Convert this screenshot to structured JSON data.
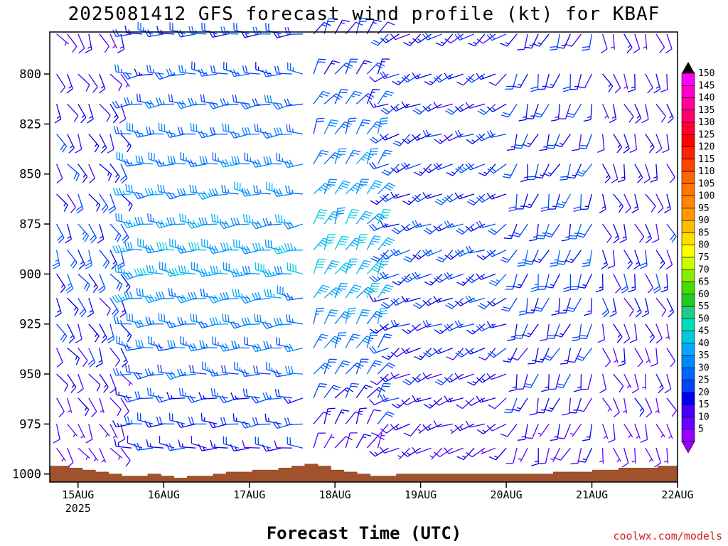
{
  "chart_data": {
    "type": "wind_barb_profile",
    "title": "2025081412 GFS forecast wind profile (kt) for KBAF",
    "xlabel": "Forecast Time (UTC)",
    "ylabel": "",
    "credit": "coolwx.com/models",
    "x_ticks": [
      {
        "label": "15AUG",
        "sub": "2025"
      },
      {
        "label": "16AUG",
        "sub": ""
      },
      {
        "label": "17AUG",
        "sub": ""
      },
      {
        "label": "18AUG",
        "sub": ""
      },
      {
        "label": "19AUG",
        "sub": ""
      },
      {
        "label": "20AUG",
        "sub": ""
      },
      {
        "label": "21AUG",
        "sub": ""
      },
      {
        "label": "22AUG",
        "sub": ""
      }
    ],
    "xlim_days_after_15AUG": [
      -0.33,
      7.0
    ],
    "y_ticks": [
      "800",
      "825",
      "850",
      "875",
      "900",
      "925",
      "950",
      "975",
      "1000"
    ],
    "ylim_hpa": [
      1004,
      779
    ],
    "levels_hpa": [
      780,
      800,
      815,
      830,
      845,
      860,
      875,
      888,
      900,
      912,
      925,
      937,
      950,
      962,
      975,
      987
    ],
    "time_step_hours": 3,
    "colorbar": {
      "labels": [
        "150",
        "145",
        "140",
        "135",
        "130",
        "125",
        "120",
        "115",
        "110",
        "105",
        "100",
        "95",
        "90",
        "85",
        "80",
        "75",
        "70",
        "65",
        "60",
        "55",
        "50",
        "45",
        "40",
        "35",
        "30",
        "25",
        "20",
        "15",
        "10",
        "5"
      ],
      "colors": [
        "#ff00ff",
        "#ff00cc",
        "#ff0099",
        "#ff0066",
        "#ff0033",
        "#ff0000",
        "#ff2200",
        "#ff4400",
        "#ff6600",
        "#ff7700",
        "#ff8800",
        "#ff9900",
        "#ffbb00",
        "#ffdd00",
        "#ffff00",
        "#ccff00",
        "#88ee00",
        "#44dd00",
        "#22cc22",
        "#22cc88",
        "#00ddbb",
        "#00ccdd",
        "#00aaff",
        "#0088ff",
        "#0066ff",
        "#0044ff",
        "#0000ee",
        "#4400ff",
        "#6600ff",
        "#9900ff"
      ]
    },
    "surface_pressure_hpa": [
      996,
      996,
      997,
      998,
      999,
      1000,
      1001,
      1001,
      1000,
      1001,
      1002,
      1001,
      1001,
      1000,
      999,
      999,
      998,
      998,
      997,
      996,
      995,
      996,
      998,
      999,
      1000,
      1001,
      1001,
      1000,
      1000,
      1000,
      1000,
      1000,
      1000,
      1000,
      1000,
      1000,
      1000,
      1000,
      1000,
      999,
      999,
      999,
      998,
      998,
      997,
      997,
      997,
      996,
      996
    ],
    "wind_key": "barbs: staff points toward wind source; short barb = 5 kt, long barb = 10 kt; color = speed",
    "regimes": [
      {
        "until_day": 0.6,
        "dir_deg": 150,
        "speed_kt": [
          10,
          5,
          20
        ]
      },
      {
        "until_day": 2.7,
        "dir_deg": 270,
        "speed_kt": [
          20,
          15,
          35
        ]
      },
      {
        "until_day": 3.5,
        "dir_deg": 30,
        "speed_kt": [
          15,
          10,
          40
        ]
      },
      {
        "until_day": 5.0,
        "dir_deg": 240,
        "speed_kt": [
          15,
          10,
          20
        ]
      },
      {
        "until_day": 6.0,
        "dir_deg": 200,
        "speed_kt": [
          15,
          10,
          20
        ]
      },
      {
        "until_day": 7.0,
        "dir_deg": 160,
        "speed_kt": [
          10,
          5,
          15
        ]
      }
    ]
  }
}
